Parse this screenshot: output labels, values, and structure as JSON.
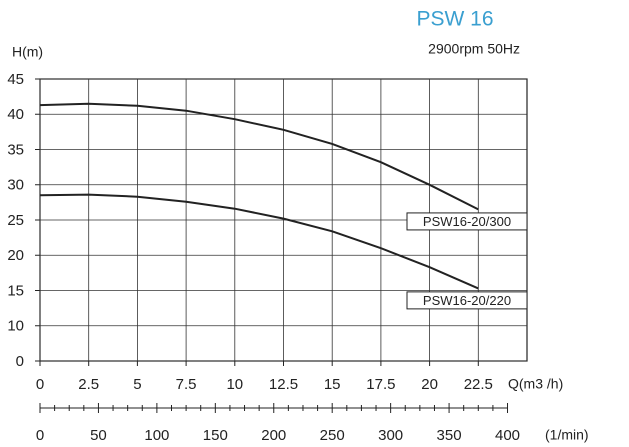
{
  "chart_data": {
    "type": "line",
    "title": "PSW 16",
    "title_color": "#3a9fd0",
    "subtitle": "2900rpm 50Hz",
    "y_label": "H(m)",
    "x_label": "Q(m3 /h)",
    "x2_label": "(1/min)",
    "x": [
      0,
      2.5,
      5,
      7.5,
      10,
      12.5,
      15,
      17.5,
      20,
      22.5
    ],
    "series": [
      {
        "name": "PSW16-20/300",
        "color": "#222222",
        "values": [
          41.3,
          41.5,
          41.2,
          40.5,
          39.3,
          37.8,
          35.8,
          33.2,
          30,
          26.5
        ]
      },
      {
        "name": "PSW16-20/220",
        "color": "#222222",
        "values": [
          28.5,
          28.6,
          28.3,
          27.6,
          26.6,
          25.2,
          23.4,
          21,
          18.3,
          15.3
        ]
      }
    ],
    "xlim": [
      0,
      25
    ],
    "xticks": [
      0,
      2.5,
      5,
      7.5,
      10,
      12.5,
      15,
      17.5,
      20,
      22.5
    ],
    "x2lim": [
      0,
      416.67
    ],
    "x2ticks": [
      0,
      50,
      100,
      150,
      200,
      250,
      300,
      350,
      400
    ],
    "ylim": [
      0,
      45
    ],
    "yticks": [
      0,
      10,
      15,
      20,
      25,
      30,
      35,
      40,
      45
    ],
    "grid": true
  }
}
